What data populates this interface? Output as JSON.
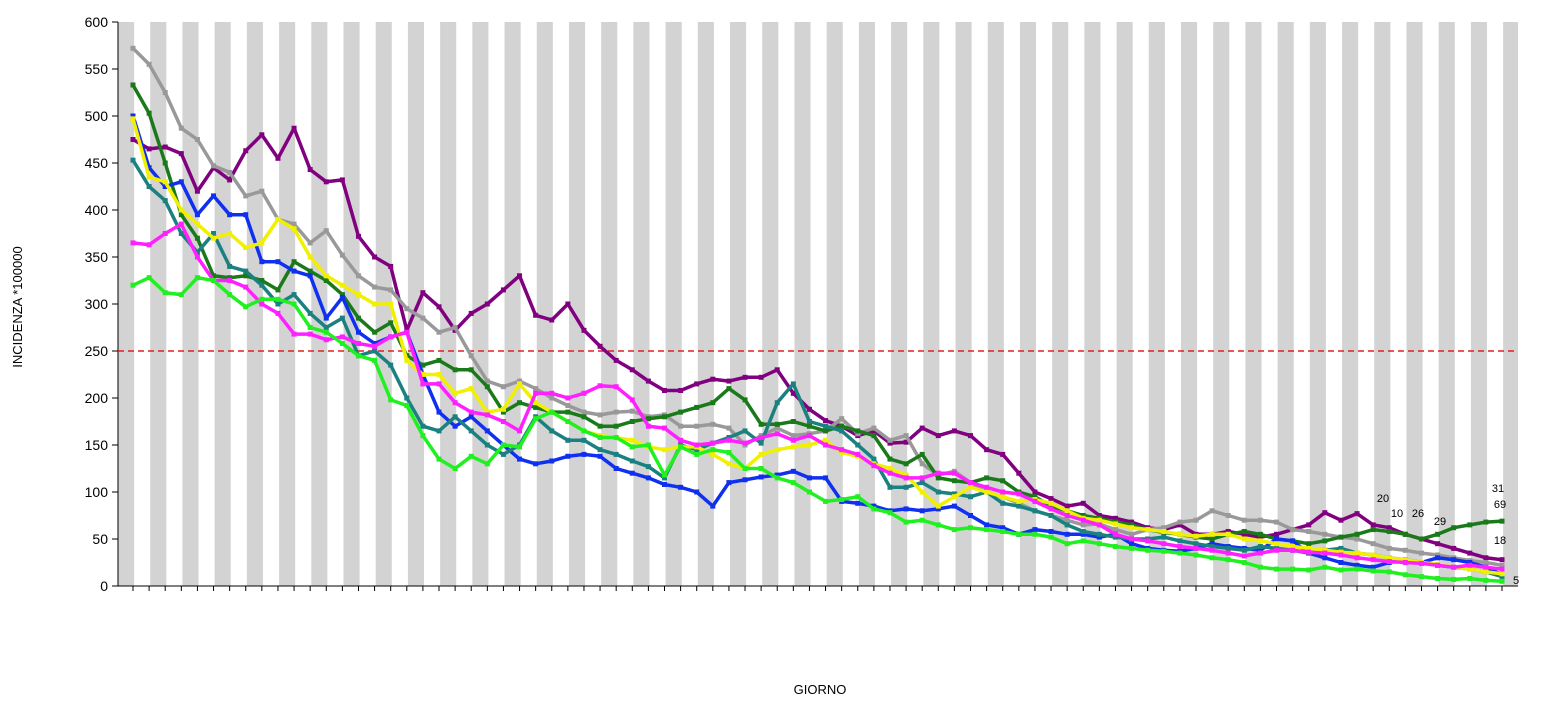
{
  "chart_data": {
    "type": "line",
    "ylabel": "INCIDENZA *100000",
    "xlabel": "GIORNO",
    "ylim": [
      0,
      600
    ],
    "yticks": [
      0,
      50,
      100,
      150,
      200,
      250,
      300,
      350,
      400,
      450,
      500,
      550,
      600
    ],
    "threshold": 250,
    "threshold_color": "#e02020",
    "stripe_color": "#d3d3d3",
    "categories": [
      null,
      null,
      null,
      null,
      null,
      null,
      null,
      null,
      null,
      null,
      null,
      null,
      null,
      null,
      null,
      null,
      null,
      null,
      null,
      null,
      null,
      null,
      null,
      null,
      null,
      null,
      null,
      null,
      null,
      null,
      null,
      null,
      null,
      null,
      null,
      null,
      null,
      null,
      null,
      null,
      null,
      null,
      null,
      null,
      null,
      null,
      null,
      null,
      null,
      null,
      null,
      null,
      null,
      null,
      null,
      null,
      null,
      null,
      null,
      null,
      null,
      null,
      null,
      null,
      null,
      null,
      null,
      null,
      null,
      null,
      null,
      null,
      null,
      null,
      null,
      null,
      null,
      null,
      null,
      null,
      null,
      null,
      null,
      null,
      null,
      null
    ],
    "series": [
      {
        "color": "#800080",
        "values": [
          475,
          465,
          467,
          460,
          420,
          445,
          432,
          463,
          480,
          455,
          487,
          443,
          430,
          432,
          372,
          350,
          340,
          272,
          312,
          297,
          272,
          290,
          300,
          315,
          330,
          288,
          283,
          300,
          272,
          255,
          240,
          230,
          218,
          208,
          208,
          215,
          220,
          218,
          222,
          222,
          230,
          205,
          188,
          176,
          170,
          160,
          165,
          152,
          153,
          168,
          160,
          165,
          160,
          145,
          140,
          120,
          100,
          93,
          85,
          88,
          75,
          72,
          68,
          62,
          60,
          65,
          55,
          55,
          58,
          55,
          52,
          55,
          60,
          65,
          78,
          70,
          77,
          65,
          62,
          55,
          50,
          45,
          40,
          35,
          30,
          28
        ]
      },
      {
        "color": "#999999",
        "values": [
          572,
          555,
          525,
          487,
          475,
          447,
          440,
          415,
          420,
          390,
          385,
          365,
          378,
          352,
          330,
          318,
          315,
          295,
          285,
          270,
          275,
          245,
          218,
          212,
          218,
          210,
          200,
          192,
          185,
          182,
          185,
          186,
          180,
          182,
          170,
          170,
          172,
          168,
          150,
          160,
          168,
          160,
          162,
          165,
          178,
          162,
          168,
          155,
          160,
          130,
          118,
          122,
          110,
          100,
          95,
          88,
          80,
          75,
          70,
          65,
          66,
          60,
          55,
          60,
          62,
          68,
          70,
          80,
          75,
          70,
          70,
          68,
          60,
          58,
          55,
          52,
          50,
          45,
          40,
          38,
          35,
          33,
          30,
          27,
          25,
          22
        ]
      },
      {
        "color": "#1a7a1a",
        "values": [
          533,
          503,
          450,
          395,
          370,
          330,
          328,
          330,
          325,
          315,
          345,
          335,
          325,
          310,
          285,
          270,
          280,
          245,
          235,
          240,
          230,
          230,
          212,
          185,
          195,
          190,
          185,
          185,
          180,
          170,
          170,
          175,
          178,
          180,
          185,
          190,
          195,
          210,
          198,
          172,
          172,
          175,
          170,
          165,
          170,
          165,
          160,
          135,
          130,
          140,
          115,
          112,
          110,
          115,
          112,
          100,
          95,
          85,
          80,
          75,
          72,
          68,
          65,
          60,
          57,
          55,
          52,
          50,
          55,
          58,
          55,
          50,
          48,
          45,
          48,
          52,
          55,
          60,
          58,
          55,
          50,
          55,
          62,
          65,
          68,
          69
        ]
      },
      {
        "color": "#1030f0",
        "values": [
          500,
          445,
          425,
          430,
          395,
          415,
          395,
          395,
          345,
          345,
          335,
          330,
          285,
          307,
          270,
          258,
          265,
          270,
          225,
          185,
          170,
          180,
          165,
          150,
          135,
          130,
          133,
          138,
          140,
          138,
          125,
          120,
          115,
          108,
          105,
          100,
          85,
          110,
          113,
          116,
          118,
          122,
          115,
          115,
          90,
          88,
          85,
          80,
          82,
          80,
          82,
          85,
          75,
          65,
          62,
          55,
          60,
          58,
          55,
          55,
          52,
          55,
          45,
          40,
          38,
          37,
          40,
          45,
          42,
          40,
          38,
          50,
          48,
          35,
          30,
          25,
          22,
          20,
          25,
          28,
          25,
          30,
          28,
          25,
          20,
          12
        ]
      },
      {
        "color": "#1a8080",
        "values": [
          453,
          425,
          410,
          375,
          355,
          375,
          340,
          335,
          320,
          300,
          310,
          290,
          275,
          285,
          245,
          250,
          235,
          200,
          170,
          165,
          180,
          165,
          150,
          140,
          150,
          180,
          165,
          155,
          155,
          145,
          140,
          133,
          127,
          115,
          150,
          145,
          152,
          158,
          165,
          152,
          195,
          215,
          175,
          170,
          165,
          150,
          135,
          105,
          105,
          110,
          100,
          98,
          95,
          100,
          88,
          85,
          80,
          75,
          65,
          58,
          55,
          52,
          50,
          50,
          52,
          48,
          45,
          42,
          40,
          38,
          42,
          40,
          38,
          35,
          38,
          40,
          35,
          33,
          30,
          28,
          25,
          22,
          20,
          18,
          15,
          10
        ]
      },
      {
        "color": "#f0f000",
        "values": [
          497,
          435,
          430,
          400,
          385,
          370,
          375,
          360,
          365,
          390,
          380,
          350,
          330,
          320,
          310,
          300,
          300,
          240,
          225,
          225,
          205,
          210,
          185,
          188,
          215,
          195,
          185,
          175,
          165,
          160,
          158,
          155,
          148,
          145,
          148,
          148,
          140,
          130,
          125,
          140,
          145,
          148,
          150,
          155,
          142,
          138,
          130,
          125,
          118,
          100,
          85,
          95,
          105,
          100,
          95,
          90,
          92,
          88,
          80,
          72,
          70,
          66,
          62,
          60,
          58,
          55,
          53,
          55,
          55,
          50,
          48,
          45,
          42,
          40,
          38,
          36,
          35,
          33,
          30,
          28,
          25,
          23,
          20,
          18,
          15,
          13
        ]
      },
      {
        "color": "#ff20ff",
        "values": [
          365,
          363,
          375,
          385,
          350,
          325,
          325,
          318,
          300,
          290,
          268,
          268,
          262,
          265,
          258,
          255,
          265,
          270,
          215,
          215,
          195,
          185,
          182,
          175,
          165,
          205,
          205,
          200,
          205,
          213,
          212,
          198,
          170,
          168,
          155,
          150,
          152,
          155,
          152,
          158,
          162,
          155,
          160,
          150,
          145,
          140,
          128,
          120,
          115,
          115,
          120,
          120,
          110,
          105,
          100,
          98,
          90,
          82,
          75,
          70,
          65,
          55,
          50,
          48,
          45,
          42,
          40,
          38,
          35,
          32,
          35,
          38,
          38,
          36,
          35,
          33,
          30,
          28,
          26,
          25,
          24,
          22,
          20,
          22,
          20,
          18
        ]
      },
      {
        "color": "#20f020",
        "values": [
          320,
          328,
          312,
          310,
          328,
          325,
          310,
          297,
          305,
          305,
          300,
          275,
          270,
          258,
          245,
          240,
          198,
          192,
          160,
          135,
          125,
          138,
          130,
          150,
          148,
          178,
          185,
          175,
          165,
          158,
          158,
          148,
          150,
          118,
          148,
          140,
          145,
          142,
          125,
          125,
          115,
          110,
          100,
          90,
          92,
          95,
          82,
          78,
          68,
          70,
          65,
          60,
          62,
          60,
          58,
          55,
          55,
          52,
          45,
          48,
          45,
          42,
          40,
          38,
          37,
          35,
          33,
          30,
          28,
          25,
          20,
          18,
          18,
          17,
          20,
          17,
          18,
          16,
          15,
          12,
          10,
          8,
          7,
          8,
          6,
          5
        ]
      }
    ],
    "annotations": [
      "20",
      "10",
      "26",
      "29",
      "31",
      "69",
      "18",
      "5"
    ]
  }
}
